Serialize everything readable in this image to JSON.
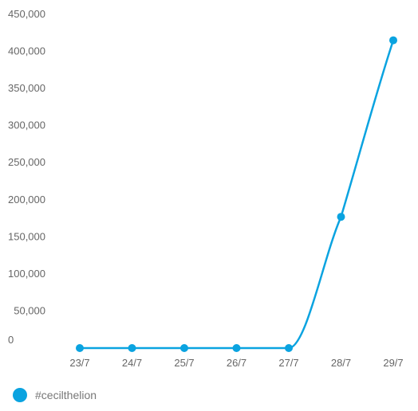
{
  "chart_data": {
    "type": "line",
    "categories": [
      "23/7",
      "24/7",
      "25/7",
      "26/7",
      "27/7",
      "28/7",
      "29/7"
    ],
    "series": [
      {
        "name": "#cecilthelion",
        "values": [
          0,
          0,
          0,
          0,
          0,
          177000,
          415000
        ]
      }
    ],
    "yticks": [
      "0",
      "50,000",
      "100,000",
      "150,000",
      "200,000",
      "250,000",
      "300,000",
      "350,000",
      "400,000",
      "450,000"
    ],
    "ylim": [
      0,
      450000
    ],
    "grid": false,
    "legend": "bottom-left",
    "colors": {
      "series": "#0aa3e0",
      "text": "#666666"
    }
  }
}
